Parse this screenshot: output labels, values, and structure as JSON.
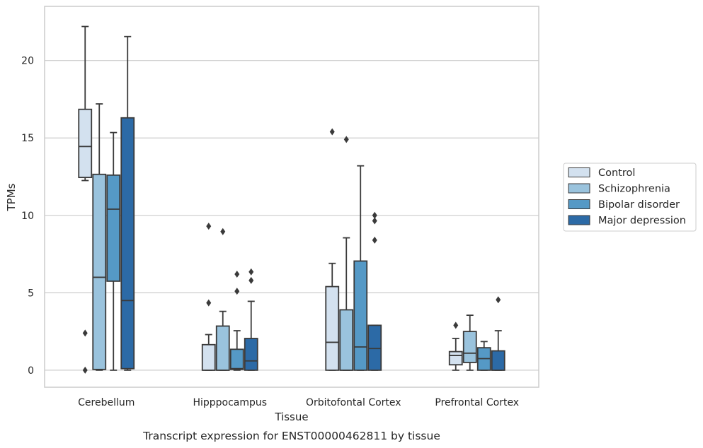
{
  "chart_data": {
    "type": "boxplot",
    "xlabel": "Tissue",
    "ylabel": "TPMs",
    "caption": "Transcript expression for ENST00000462811 by tissue",
    "ylim": [
      -1.1,
      23.5
    ],
    "yticks": [
      0,
      5,
      10,
      15,
      20
    ],
    "grid": "horizontal",
    "legend_position": "right",
    "categories": [
      "Cerebellum",
      "Hipppocampus",
      "Orbitofontal Cortex",
      "Prefrontal Cortex"
    ],
    "series": [
      {
        "name": "Control",
        "color": "#d3e1ef",
        "boxes": [
          {
            "whislo": 12.25,
            "q1": 12.45,
            "med": 14.45,
            "q3": 16.85,
            "whishi": 22.2,
            "fliers": [
              2.4,
              0.0
            ]
          },
          {
            "whislo": 0.0,
            "q1": 0.0,
            "med": 0.0,
            "q3": 1.65,
            "whishi": 2.3,
            "fliers": [
              9.3,
              4.35
            ]
          },
          {
            "whislo": 0.0,
            "q1": 0.0,
            "med": 1.8,
            "q3": 5.4,
            "whishi": 6.9,
            "fliers": [
              15.4
            ]
          },
          {
            "whislo": 0.0,
            "q1": 0.35,
            "med": 0.95,
            "q3": 1.2,
            "whishi": 2.05,
            "fliers": [
              2.9
            ]
          }
        ]
      },
      {
        "name": "Schizophrenia",
        "color": "#9ac3dd",
        "boxes": [
          {
            "whislo": 0.0,
            "q1": 0.05,
            "med": 6.0,
            "q3": 12.65,
            "whishi": 17.2,
            "fliers": []
          },
          {
            "whislo": 0.0,
            "q1": 0.0,
            "med": 0.0,
            "q3": 2.85,
            "whishi": 3.8,
            "fliers": [
              8.95
            ]
          },
          {
            "whislo": 0.0,
            "q1": 0.0,
            "med": 0.0,
            "q3": 3.9,
            "whishi": 8.55,
            "fliers": [
              14.9
            ]
          },
          {
            "whislo": 0.0,
            "q1": 0.5,
            "med": 1.1,
            "q3": 2.5,
            "whishi": 3.55,
            "fliers": []
          }
        ]
      },
      {
        "name": "Bipolar disorder",
        "color": "#5599c6",
        "boxes": [
          {
            "whislo": 0.0,
            "q1": 5.75,
            "med": 10.4,
            "q3": 12.6,
            "whishi": 15.35,
            "fliers": []
          },
          {
            "whislo": 0.0,
            "q1": 0.05,
            "med": 0.1,
            "q3": 1.35,
            "whishi": 2.55,
            "fliers": [
              6.2,
              5.1
            ]
          },
          {
            "whislo": 0.0,
            "q1": 0.0,
            "med": 1.5,
            "q3": 7.05,
            "whishi": 13.2,
            "fliers": []
          },
          {
            "whislo": 0.0,
            "q1": 0.0,
            "med": 0.75,
            "q3": 1.45,
            "whishi": 1.85,
            "fliers": []
          }
        ]
      },
      {
        "name": "Major depression",
        "color": "#2c6aa6",
        "boxes": [
          {
            "whislo": 0.0,
            "q1": 0.1,
            "med": 4.5,
            "q3": 16.3,
            "whishi": 21.55,
            "fliers": []
          },
          {
            "whislo": 0.0,
            "q1": 0.0,
            "med": 0.6,
            "q3": 2.05,
            "whishi": 4.45,
            "fliers": [
              6.35,
              5.8
            ]
          },
          {
            "whislo": 0.0,
            "q1": 0.0,
            "med": 1.4,
            "q3": 2.9,
            "whishi": 2.9,
            "fliers": [
              10.0,
              9.65,
              8.4
            ]
          },
          {
            "whislo": 0.0,
            "q1": 0.0,
            "med": 0.0,
            "q3": 1.25,
            "whishi": 2.55,
            "fliers": [
              4.55
            ]
          }
        ]
      }
    ]
  }
}
